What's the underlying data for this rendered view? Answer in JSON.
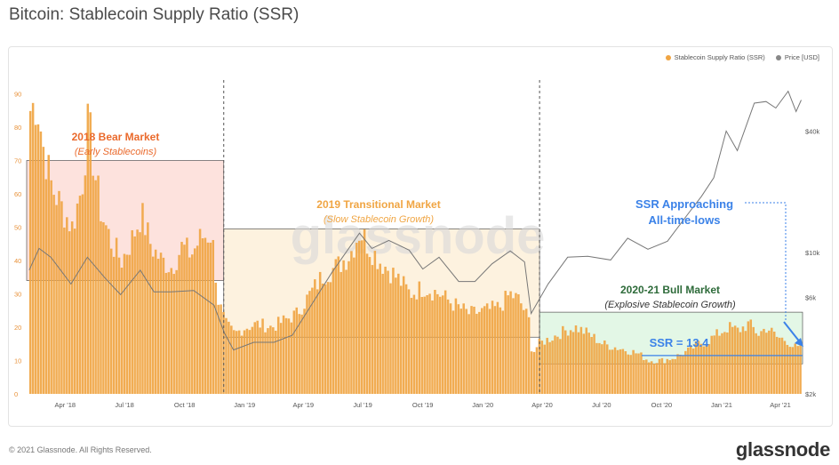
{
  "header": {
    "title": "Bitcoin: Stablecoin Supply Ratio (SSR)"
  },
  "footer": {
    "copyright": "© 2021 Glassnode. All Rights Reserved.",
    "logo": "glassnode"
  },
  "watermark": "glassnode",
  "chart_data": {
    "type": "bar",
    "legend": [
      {
        "name": "Stablecoin Supply Ratio (SSR)",
        "color": "#f0a543"
      },
      {
        "name": "Price [USD]",
        "color": "#888888"
      }
    ],
    "y_left": {
      "ticks": [
        0,
        10,
        20,
        30,
        40,
        50,
        60,
        70,
        80,
        90
      ],
      "range": [
        0,
        92
      ]
    },
    "y_right": {
      "scale": "log",
      "ticks": [
        {
          "value": 2000,
          "label": "$2k"
        },
        {
          "value": 6000,
          "label": "$6k"
        },
        {
          "value": 10000,
          "label": "$10k"
        },
        {
          "value": 40000,
          "label": "$40k"
        }
      ],
      "range": [
        2000,
        66000
      ]
    },
    "x_ticks": [
      {
        "date": "2018-04-01",
        "label": "Apr '18"
      },
      {
        "date": "2018-07-01",
        "label": "Jul '18"
      },
      {
        "date": "2018-10-01",
        "label": "Oct '18"
      },
      {
        "date": "2019-01-01",
        "label": "Jan '19"
      },
      {
        "date": "2019-04-01",
        "label": "Apr '19"
      },
      {
        "date": "2019-07-01",
        "label": "Jul '19"
      },
      {
        "date": "2019-10-01",
        "label": "Oct '19"
      },
      {
        "date": "2020-01-01",
        "label": "Jan '20"
      },
      {
        "date": "2020-04-01",
        "label": "Apr '20"
      },
      {
        "date": "2020-07-01",
        "label": "Jul '20"
      },
      {
        "date": "2020-10-01",
        "label": "Oct '20"
      },
      {
        "date": "2021-01-01",
        "label": "Jan '21"
      },
      {
        "date": "2021-04-01",
        "label": "Apr '21"
      }
    ],
    "x_range": [
      "2018-02-01",
      "2021-05-05"
    ],
    "ssr_series": [
      [
        "2018-02-05",
        85
      ],
      [
        "2018-02-15",
        88
      ],
      [
        "2018-02-25",
        74
      ],
      [
        "2018-03-10",
        62
      ],
      [
        "2018-03-25",
        56
      ],
      [
        "2018-04-10",
        50
      ],
      [
        "2018-04-25",
        62
      ],
      [
        "2018-05-05",
        82
      ],
      [
        "2018-05-15",
        66
      ],
      [
        "2018-05-25",
        54
      ],
      [
        "2018-06-10",
        45
      ],
      [
        "2018-06-25",
        40
      ],
      [
        "2018-07-10",
        46
      ],
      [
        "2018-07-25",
        54
      ],
      [
        "2018-08-10",
        44
      ],
      [
        "2018-08-25",
        40
      ],
      [
        "2018-09-10",
        38
      ],
      [
        "2018-09-25",
        44
      ],
      [
        "2018-10-10",
        42
      ],
      [
        "2018-10-25",
        47
      ],
      [
        "2018-11-10",
        48
      ],
      [
        "2018-11-20",
        28
      ],
      [
        "2018-12-01",
        21
      ],
      [
        "2018-12-15",
        18
      ],
      [
        "2019-01-01",
        20
      ],
      [
        "2019-01-20",
        21
      ],
      [
        "2019-02-10",
        20
      ],
      [
        "2019-03-01",
        22
      ],
      [
        "2019-03-20",
        24
      ],
      [
        "2019-04-10",
        30
      ],
      [
        "2019-05-01",
        36
      ],
      [
        "2019-05-20",
        38
      ],
      [
        "2019-06-10",
        42
      ],
      [
        "2019-06-25",
        49
      ],
      [
        "2019-07-10",
        44
      ],
      [
        "2019-07-25",
        40
      ],
      [
        "2019-08-10",
        37
      ],
      [
        "2019-08-25",
        34
      ],
      [
        "2019-09-10",
        30
      ],
      [
        "2019-10-01",
        32
      ],
      [
        "2019-10-25",
        30
      ],
      [
        "2019-11-15",
        27
      ],
      [
        "2019-12-10",
        24
      ],
      [
        "2020-01-05",
        25
      ],
      [
        "2020-01-25",
        26
      ],
      [
        "2020-02-10",
        30
      ],
      [
        "2020-02-25",
        28
      ],
      [
        "2020-03-10",
        22
      ],
      [
        "2020-03-15",
        12
      ],
      [
        "2020-03-25",
        15
      ],
      [
        "2020-04-15",
        17
      ],
      [
        "2020-05-05",
        19
      ],
      [
        "2020-05-20",
        20
      ],
      [
        "2020-06-10",
        18
      ],
      [
        "2020-07-01",
        15
      ],
      [
        "2020-07-20",
        14
      ],
      [
        "2020-08-10",
        13
      ],
      [
        "2020-08-25",
        12
      ],
      [
        "2020-09-10",
        10
      ],
      [
        "2020-10-01",
        10
      ],
      [
        "2020-10-20",
        11
      ],
      [
        "2020-11-10",
        13
      ],
      [
        "2020-11-25",
        15
      ],
      [
        "2020-12-10",
        16
      ],
      [
        "2020-12-25",
        18
      ],
      [
        "2021-01-10",
        20
      ],
      [
        "2021-01-25",
        19
      ],
      [
        "2021-02-10",
        21
      ],
      [
        "2021-02-25",
        18
      ],
      [
        "2021-03-10",
        20
      ],
      [
        "2021-03-25",
        17
      ],
      [
        "2021-04-10",
        16
      ],
      [
        "2021-04-20",
        14
      ],
      [
        "2021-05-01",
        13.4
      ]
    ],
    "price_series": [
      [
        "2018-02-05",
        8200
      ],
      [
        "2018-02-20",
        10500
      ],
      [
        "2018-03-10",
        9500
      ],
      [
        "2018-03-25",
        8200
      ],
      [
        "2018-04-10",
        7000
      ],
      [
        "2018-05-05",
        9500
      ],
      [
        "2018-06-01",
        7500
      ],
      [
        "2018-06-25",
        6200
      ],
      [
        "2018-07-25",
        8200
      ],
      [
        "2018-08-15",
        6400
      ],
      [
        "2018-09-10",
        6400
      ],
      [
        "2018-10-15",
        6500
      ],
      [
        "2018-11-15",
        5500
      ],
      [
        "2018-12-01",
        4000
      ],
      [
        "2018-12-15",
        3300
      ],
      [
        "2019-01-15",
        3600
      ],
      [
        "2019-02-15",
        3600
      ],
      [
        "2019-03-15",
        3900
      ],
      [
        "2019-04-05",
        5000
      ],
      [
        "2019-05-15",
        8000
      ],
      [
        "2019-06-26",
        12500
      ],
      [
        "2019-07-15",
        10500
      ],
      [
        "2019-08-10",
        11500
      ],
      [
        "2019-09-10",
        10300
      ],
      [
        "2019-10-01",
        8300
      ],
      [
        "2019-10-26",
        9500
      ],
      [
        "2019-11-25",
        7200
      ],
      [
        "2019-12-20",
        7200
      ],
      [
        "2020-01-15",
        8800
      ],
      [
        "2020-02-12",
        10200
      ],
      [
        "2020-03-05",
        9000
      ],
      [
        "2020-03-15",
        5000
      ],
      [
        "2020-04-10",
        7000
      ],
      [
        "2020-05-10",
        9500
      ],
      [
        "2020-06-10",
        9600
      ],
      [
        "2020-07-15",
        9200
      ],
      [
        "2020-08-10",
        11800
      ],
      [
        "2020-09-10",
        10400
      ],
      [
        "2020-10-10",
        11400
      ],
      [
        "2020-11-10",
        15500
      ],
      [
        "2020-12-01",
        19000
      ],
      [
        "2020-12-20",
        23500
      ],
      [
        "2021-01-08",
        40000
      ],
      [
        "2021-01-25",
        32000
      ],
      [
        "2021-02-20",
        55000
      ],
      [
        "2021-03-10",
        56000
      ],
      [
        "2021-03-25",
        52000
      ],
      [
        "2021-04-13",
        63000
      ],
      [
        "2021-04-25",
        50000
      ],
      [
        "2021-05-03",
        57000
      ]
    ],
    "regions": [
      {
        "id": "bear",
        "title": "2018 Bear Market",
        "subtitle": "(Early Stablecoins)",
        "start": "2018-02-01",
        "end": "2018-11-30",
        "y_low": 34,
        "y_high": 70,
        "fill": "#fde2dd",
        "stroke": "#555555",
        "label_color": "#ea6a2c"
      },
      {
        "id": "transitional",
        "title": "2019 Transitional Market",
        "subtitle": "(Slow Stablecoin Growth)",
        "start": "2018-11-30",
        "end": "2020-03-28",
        "y_low": 17,
        "y_high": 49.5,
        "fill": "#fdf2df",
        "stroke": "#555555",
        "label_color": "#f0a543"
      },
      {
        "id": "bull",
        "title": "2020-21 Bull Market",
        "subtitle": "(Explosive Stablecoin Growth)",
        "start": "2020-03-28",
        "end": "2021-05-05",
        "y_low": 9,
        "y_high": 24.5,
        "fill": "#e3f7e6",
        "stroke": "#555555",
        "label_color": "#2e6b3a"
      }
    ],
    "dividers": [
      "2018-11-30",
      "2020-03-28"
    ],
    "annotations": {
      "approaching": "SSR Approaching",
      "approaching2": "All-time-lows",
      "ssr_value": "SSR = 13.4",
      "ssr_reference": 11.5
    }
  }
}
